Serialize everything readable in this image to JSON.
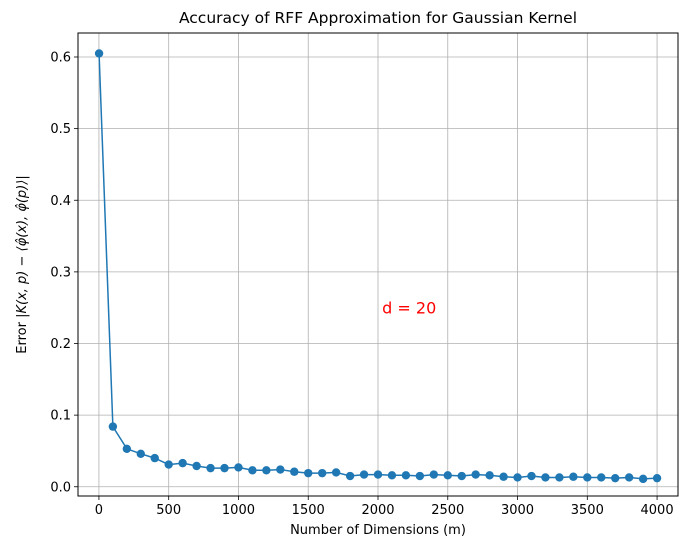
{
  "chart_data": {
    "type": "line",
    "title": "Accuracy of RFF Approximation for Gaussian Kernel",
    "xlabel": "Number of Dimensions (m)",
    "ylabel_prefix": "Error ",
    "ylabel_math": "|K(x, p) − ⟨φ̂(x), φ̂(p)⟩|",
    "xlim": [
      -150,
      4150
    ],
    "ylim": [
      -0.0129,
      0.6335
    ],
    "xticks": [
      0,
      500,
      1000,
      1500,
      2000,
      2500,
      3000,
      3500,
      4000
    ],
    "xtick_labels": [
      "0",
      "500",
      "1000",
      "1500",
      "2000",
      "2500",
      "3000",
      "3500",
      "4000"
    ],
    "yticks": [
      0.0,
      0.1,
      0.2,
      0.3,
      0.4,
      0.5,
      0.6
    ],
    "ytick_labels": [
      "0.0",
      "0.1",
      "0.2",
      "0.3",
      "0.4",
      "0.5",
      "0.6"
    ],
    "grid": true,
    "annotation": {
      "text": "d = 20",
      "x": 2030,
      "y": 0.25,
      "color": "#ff0000"
    },
    "series": [
      {
        "color": "#1f77b4",
        "x": [
          1,
          100,
          200,
          300,
          400,
          500,
          600,
          700,
          800,
          900,
          1000,
          1100,
          1200,
          1300,
          1400,
          1500,
          1600,
          1700,
          1800,
          1900,
          2000,
          2100,
          2200,
          2300,
          2400,
          2500,
          2600,
          2700,
          2800,
          2900,
          3000,
          3100,
          3200,
          3300,
          3400,
          3500,
          3600,
          3700,
          3800,
          3900,
          4000
        ],
        "y": [
          0.605,
          0.084,
          0.053,
          0.046,
          0.04,
          0.031,
          0.033,
          0.029,
          0.026,
          0.026,
          0.027,
          0.023,
          0.023,
          0.024,
          0.021,
          0.019,
          0.019,
          0.02,
          0.015,
          0.017,
          0.017,
          0.016,
          0.016,
          0.015,
          0.017,
          0.016,
          0.015,
          0.017,
          0.016,
          0.014,
          0.013,
          0.015,
          0.013,
          0.013,
          0.014,
          0.013,
          0.013,
          0.012,
          0.013,
          0.011,
          0.012
        ]
      }
    ]
  }
}
